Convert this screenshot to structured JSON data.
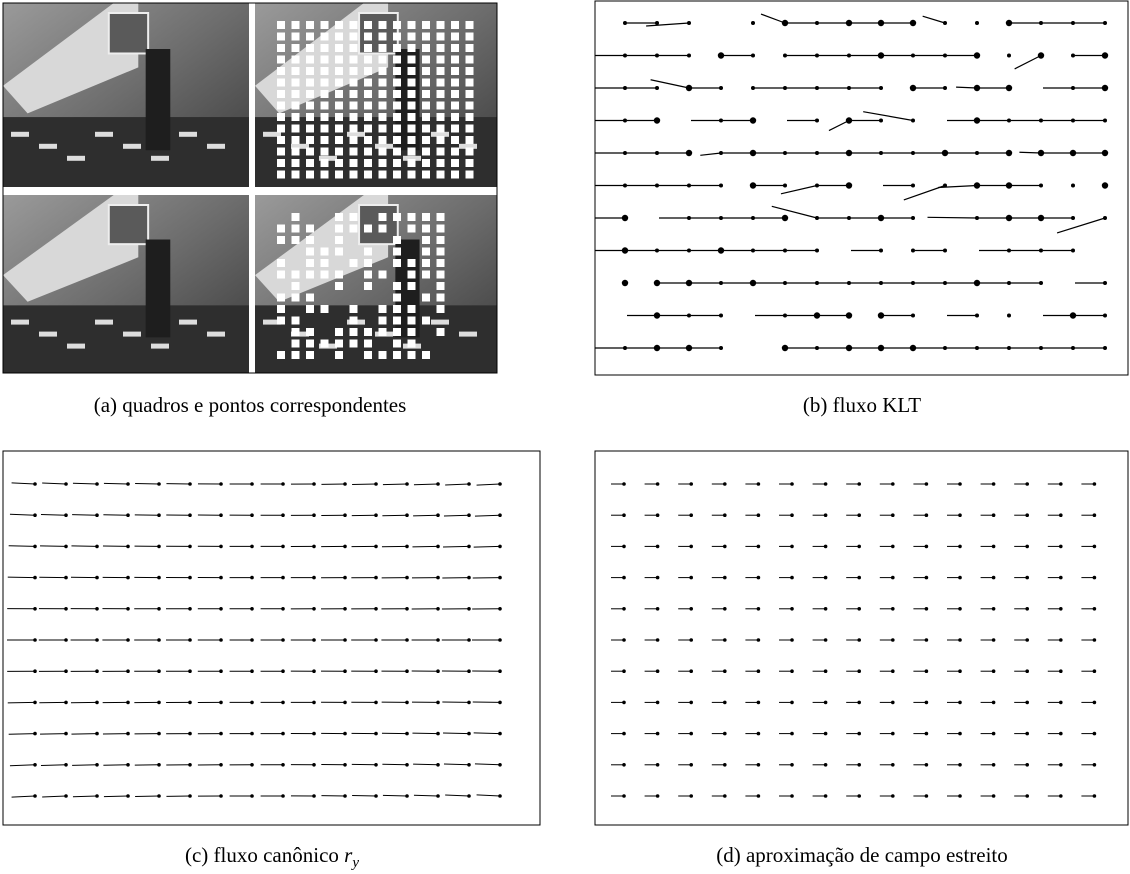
{
  "figure": {
    "panels": [
      {
        "label": "(a)",
        "text": "quadros e pontos correspondentes"
      },
      {
        "label": "(b)",
        "text": "fluxo KLT"
      },
      {
        "label": "(c)",
        "text": "fluxo canônico",
        "math_base": "r",
        "math_sub": "y"
      },
      {
        "label": "(d)",
        "text": "aproximação de campo estreito"
      }
    ]
  }
}
